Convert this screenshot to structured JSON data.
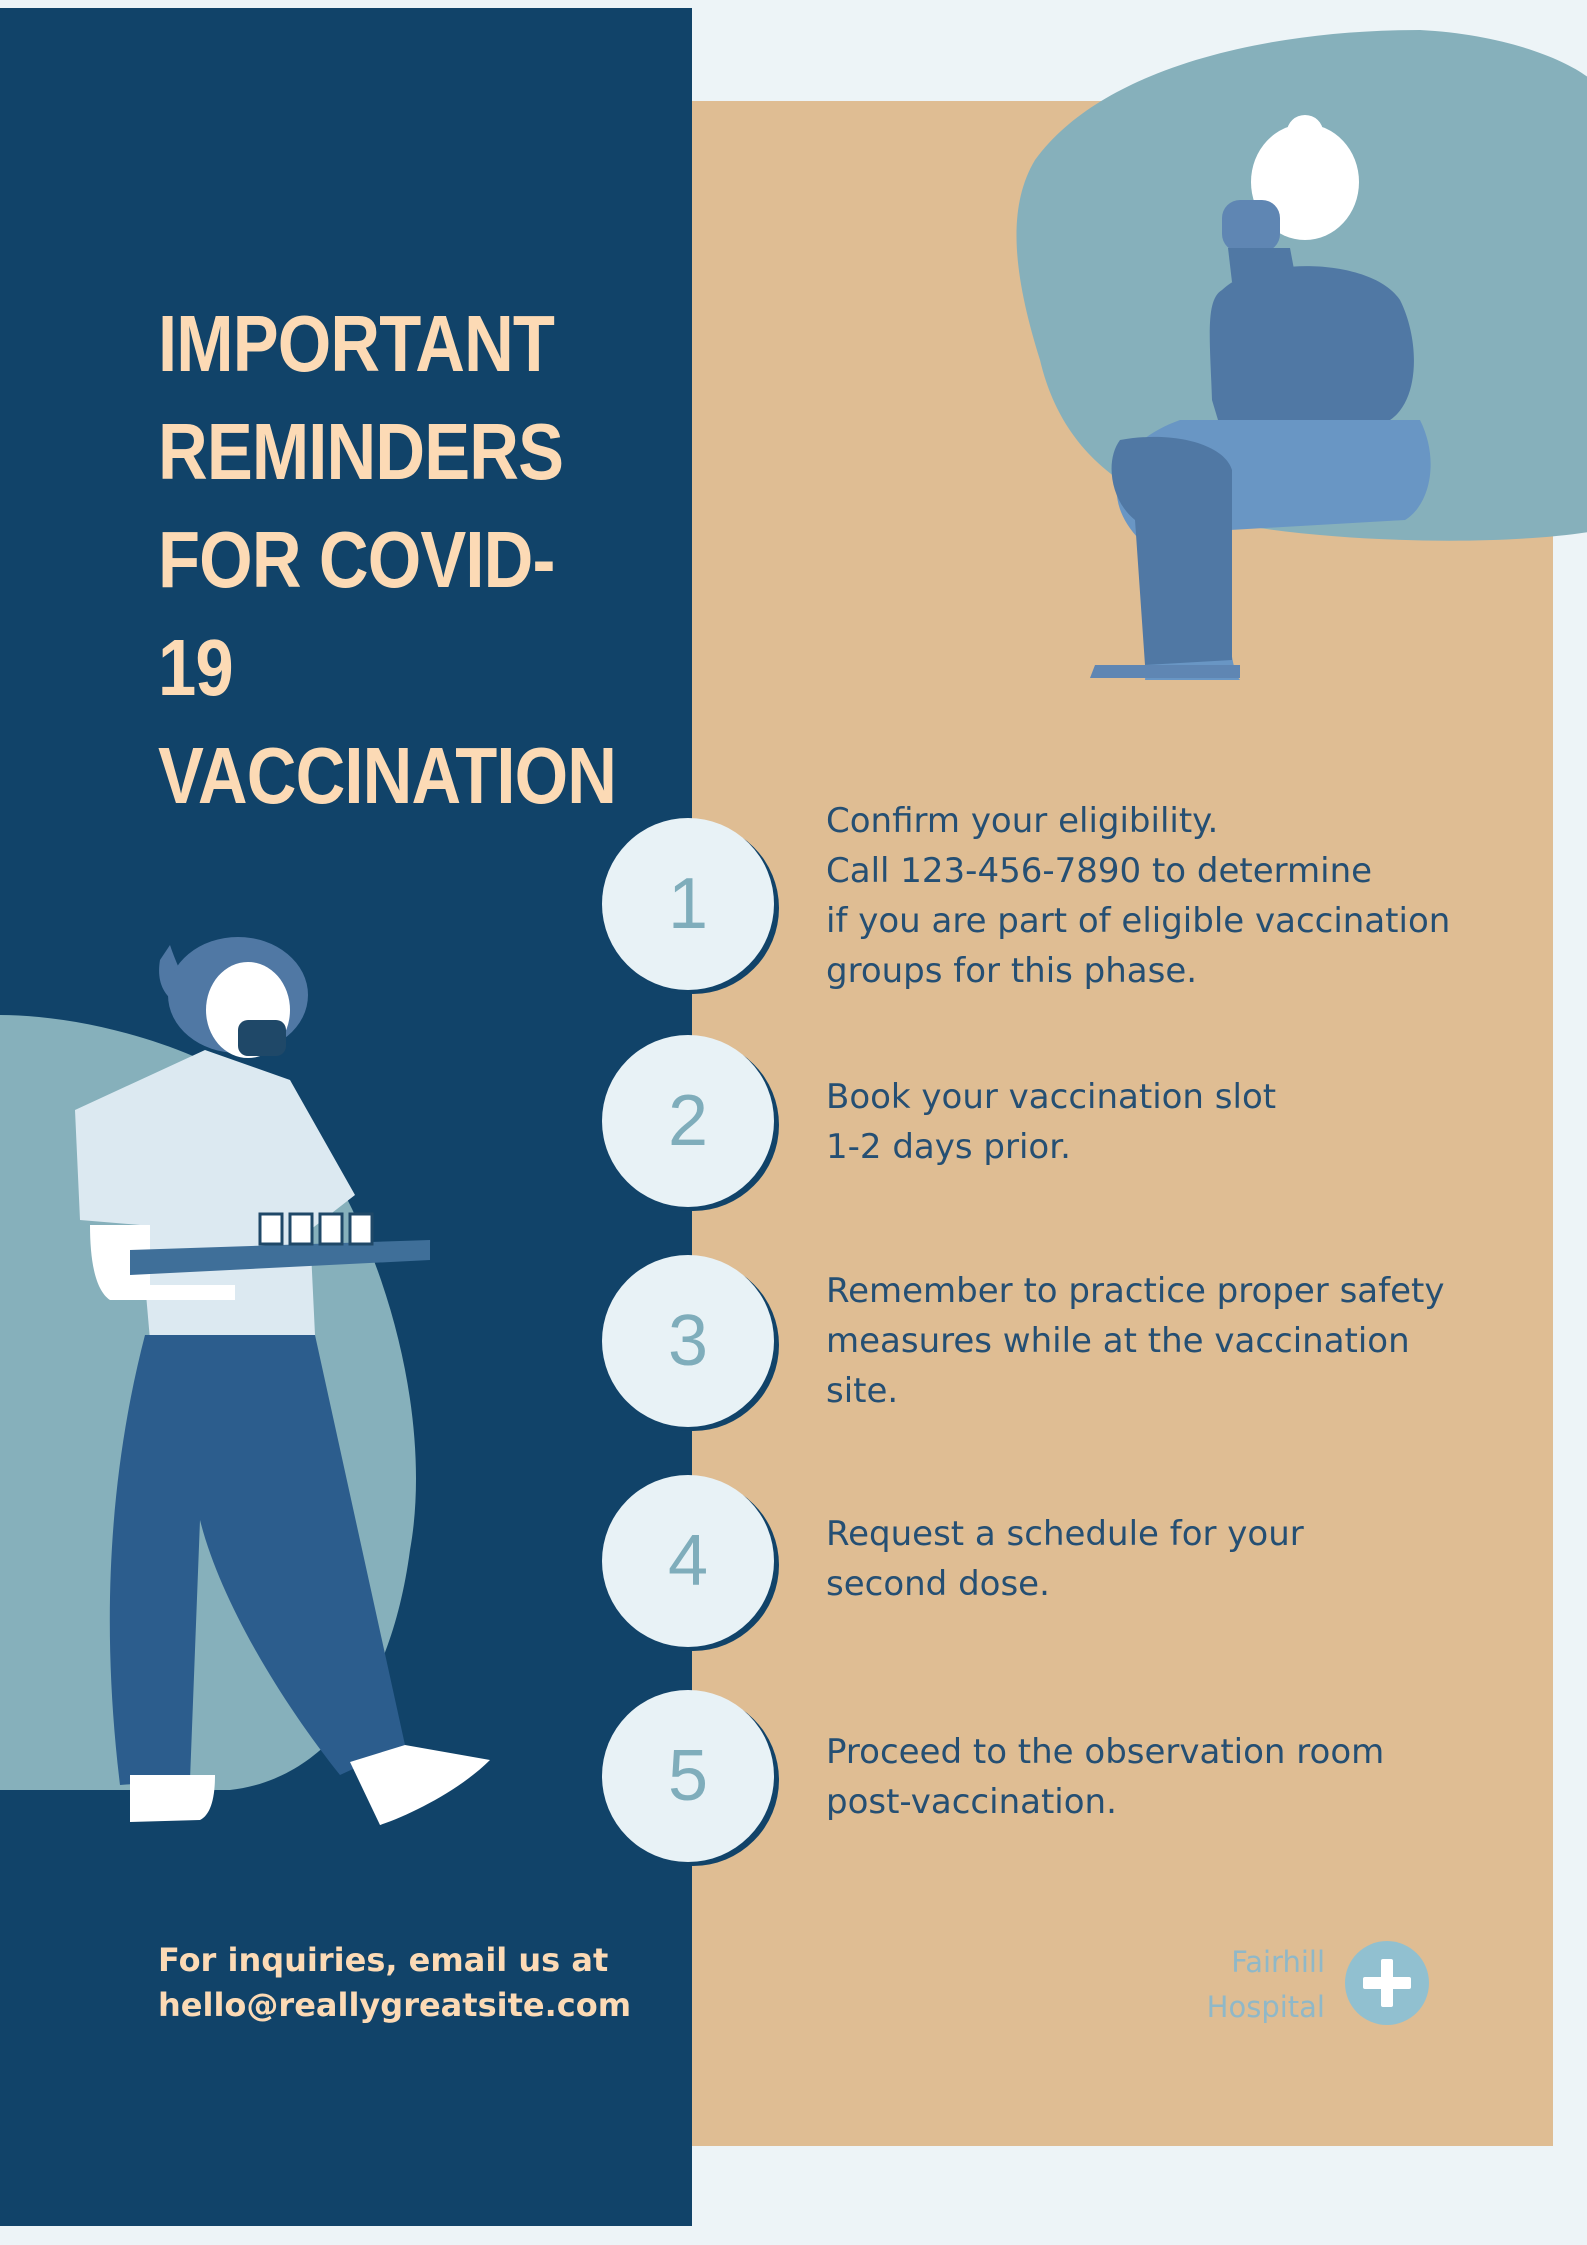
{
  "title": "Important Reminders for COVID-19 Vaccination",
  "steps": [
    {
      "number": "1",
      "text": "Confirm your eligibility.\nCall 123-456-7890 to determine\nif you are part of eligible vaccination\ngroups for this phase."
    },
    {
      "number": "2",
      "text": "Book your vaccination slot\n1-2 days prior."
    },
    {
      "number": "3",
      "text": "Remember to practice proper safety\nmeasures while at the vaccination\nsite."
    },
    {
      "number": "4",
      "text": "Request a schedule for your\nsecond dose."
    },
    {
      "number": "5",
      "text": "Proceed to the observation room\npost-vaccination."
    }
  ],
  "footer": {
    "contact": "For inquiries, email us at\nhello@reallygreatsite.com",
    "hospital": "Fairhill\nHospital"
  },
  "icons": {
    "seated_person": "seated-woman-illustration",
    "nurse": "nurse-with-vaccine-tray-illustration",
    "logo": "medical-cross-icon"
  },
  "colors": {
    "navy": "#114369",
    "sand": "#dfbd93",
    "teal": "#86b0bb",
    "cream": "#fcdab5",
    "mist": "#edf4f7"
  }
}
